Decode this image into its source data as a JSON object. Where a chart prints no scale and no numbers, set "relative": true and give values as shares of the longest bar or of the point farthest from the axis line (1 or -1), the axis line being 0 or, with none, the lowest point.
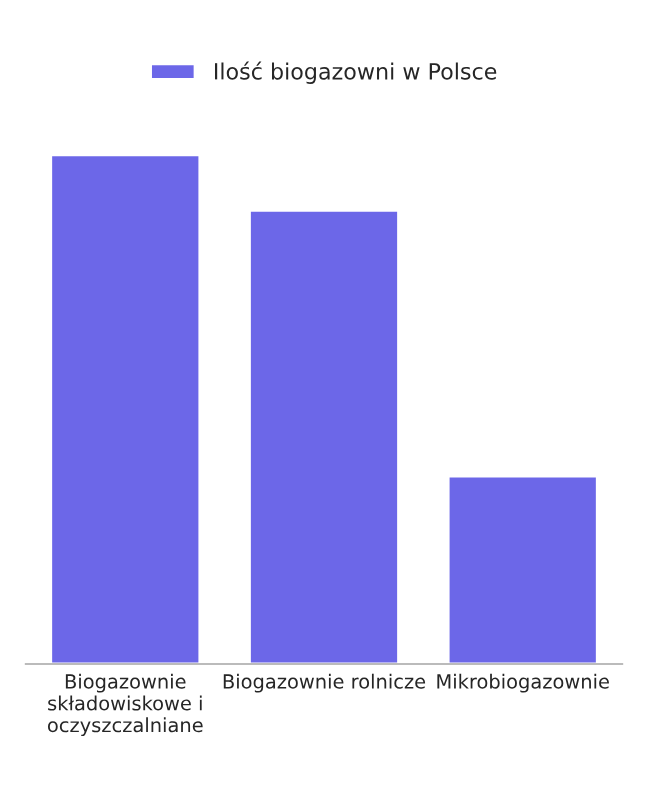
{
  "chart_data": {
    "type": "bar",
    "relative": true,
    "categories": [
      "Biogazownie składowiskowe i oczyszczalniane",
      "Biogazownie rolnicze",
      "Mikrobiogazownie"
    ],
    "series": [
      {
        "name": "Ilość biogazowni w Polsce",
        "color": "#6c67e8",
        "values": [
          1,
          0.891,
          0.369
        ]
      }
    ],
    "legend": "top"
  }
}
